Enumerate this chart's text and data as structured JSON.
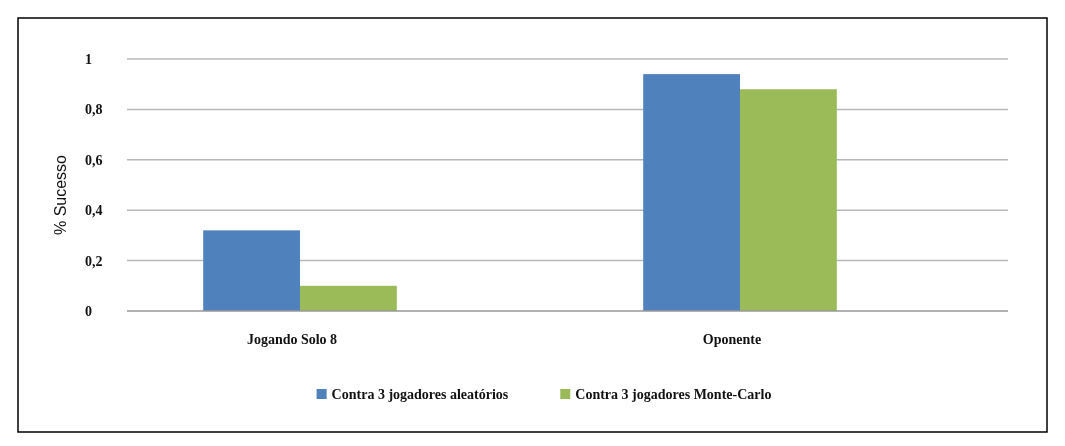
{
  "chart_data": {
    "type": "bar",
    "ylabel": "% Sucesso",
    "categories": [
      "Jogando Solo 8",
      "Oponente"
    ],
    "series": [
      {
        "name": "Contra 3 jogadores aleatórios",
        "color": "#4f81bd",
        "values": [
          0.32,
          0.94
        ]
      },
      {
        "name": "Contra 3 jogadores Monte-Carlo",
        "color": "#9bbb59",
        "values": [
          0.1,
          0.88
        ]
      }
    ],
    "ylim": [
      0,
      1
    ],
    "yticks": [
      0,
      {
        "value": 0.2,
        "label": "0,2"
      },
      {
        "value": 0.4,
        "label": "0,4"
      },
      {
        "value": 0.6,
        "label": "0,6"
      },
      {
        "value": 0.8,
        "label": "0,8"
      },
      1
    ],
    "grid": "y",
    "legend": "bottom"
  }
}
